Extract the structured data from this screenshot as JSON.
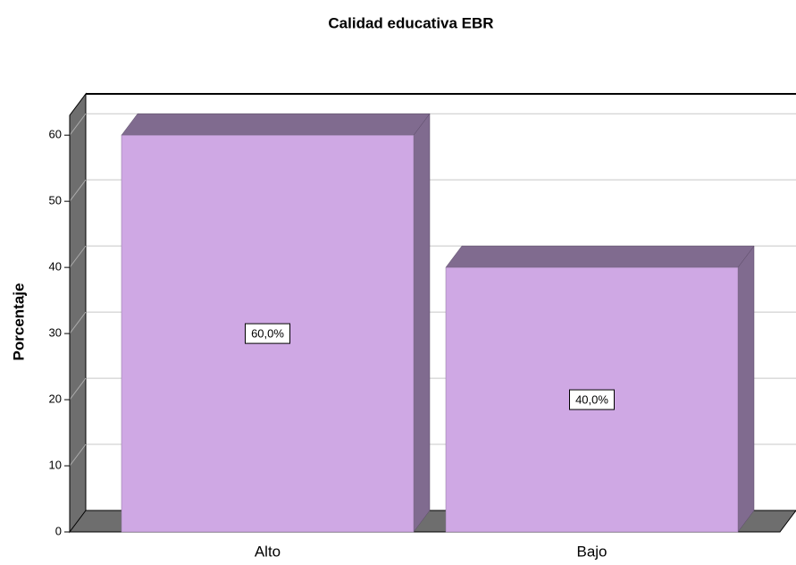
{
  "chart_data": {
    "type": "bar3d",
    "title": "Calidad educativa EBR",
    "y_label": "Porcentaje",
    "categories": [
      "Alto",
      "Bajo"
    ],
    "values": [
      60,
      40
    ],
    "value_labels": [
      "60,0%",
      "40,0%"
    ],
    "color": "#cfa8e4",
    "shade_color": "#806b8f",
    "ylim": [
      0,
      63
    ],
    "yticks": [
      0,
      10,
      20,
      30,
      40,
      50,
      60
    ],
    "grid": true
  }
}
